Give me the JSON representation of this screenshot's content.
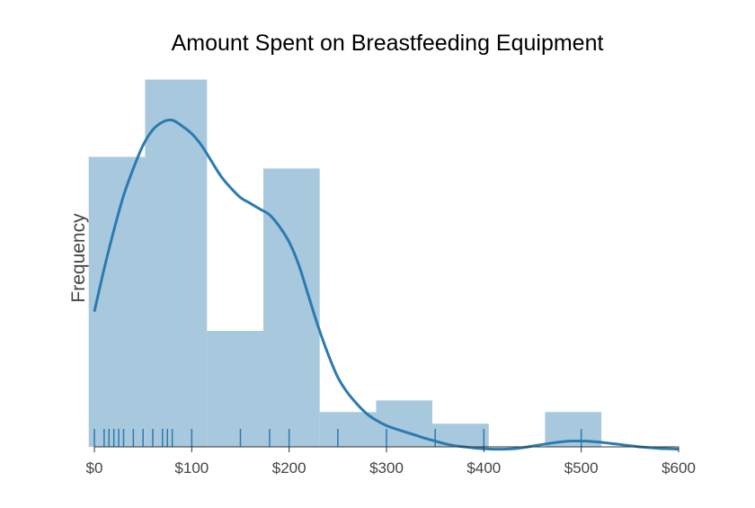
{
  "chart_data": {
    "type": "histogram",
    "title": "Amount Spent on Breastfeeding Equipment",
    "xlabel": "",
    "ylabel": "Frequency",
    "xlim": [
      0,
      600
    ],
    "x_ticks": [
      "$0",
      "$100",
      "$200",
      "$300",
      "$400",
      "$500",
      "$600"
    ],
    "x_tick_values": [
      0,
      100,
      200,
      300,
      400,
      500,
      600
    ],
    "y_axis_visible": false,
    "grid": false,
    "bins": [
      {
        "start": -5.8,
        "end": 52.1,
        "frequency": 7.5
      },
      {
        "start": 52.1,
        "end": 115.7,
        "frequency": 9.5
      },
      {
        "start": 115.7,
        "end": 173.5,
        "frequency": 3.0
      },
      {
        "start": 173.5,
        "end": 231.4,
        "frequency": 7.2
      },
      {
        "start": 231.4,
        "end": 289.3,
        "frequency": 0.9
      },
      {
        "start": 289.3,
        "end": 347.1,
        "frequency": 1.2
      },
      {
        "start": 347.1,
        "end": 405.0,
        "frequency": 0.6
      },
      {
        "start": 405.0,
        "end": 462.8,
        "frequency": 0
      },
      {
        "start": 462.8,
        "end": 520.7,
        "frequency": 0.9
      }
    ],
    "rug_values": [
      0,
      10,
      15,
      20,
      25,
      30,
      40,
      50,
      60,
      70,
      75,
      80,
      100,
      150,
      180,
      200,
      250,
      300,
      350,
      400,
      500
    ],
    "kde": {
      "x": [
        0,
        10,
        20,
        30,
        40,
        50,
        60,
        70,
        80,
        90,
        100,
        110,
        120,
        130,
        140,
        150,
        160,
        170,
        180,
        190,
        200,
        210,
        220,
        230,
        240,
        250,
        260,
        270,
        280,
        290,
        300,
        310,
        320,
        330,
        340,
        350,
        360,
        370,
        380,
        390,
        400,
        410,
        420,
        430,
        440,
        450,
        460,
        470,
        480,
        490,
        500,
        510,
        520,
        530,
        540,
        550,
        560,
        570,
        580,
        590,
        600
      ],
      "y": [
        3.5,
        4.6,
        5.6,
        6.5,
        7.2,
        7.8,
        8.2,
        8.4,
        8.45,
        8.3,
        8.1,
        7.8,
        7.4,
        7.0,
        6.7,
        6.45,
        6.3,
        6.15,
        6.0,
        5.7,
        5.3,
        4.7,
        3.9,
        3.1,
        2.4,
        1.8,
        1.4,
        1.1,
        0.85,
        0.68,
        0.55,
        0.46,
        0.38,
        0.3,
        0.22,
        0.15,
        0.08,
        0.03,
        0.0,
        -0.03,
        -0.05,
        -0.06,
        -0.06,
        -0.05,
        -0.02,
        0.02,
        0.06,
        0.1,
        0.13,
        0.15,
        0.15,
        0.14,
        0.12,
        0.09,
        0.06,
        0.03,
        0.0,
        -0.02,
        -0.04,
        -0.05,
        -0.06
      ]
    },
    "colors": {
      "bar": "#a8c8de",
      "line": "#2b7bb0",
      "rug": "#2b7bb0",
      "axis": "#333333",
      "text": "#444444"
    }
  }
}
